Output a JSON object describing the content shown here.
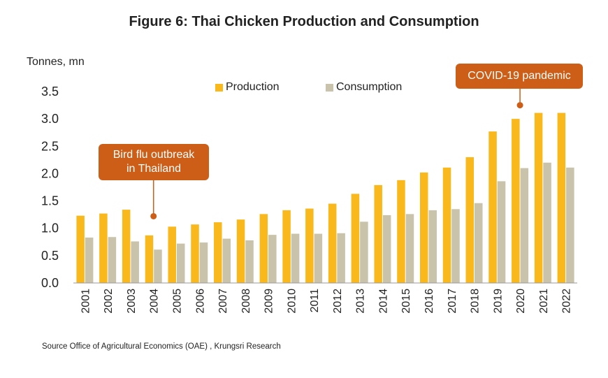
{
  "chart_data": {
    "type": "bar",
    "title": "Figure 6: Thai Chicken Production and Consumption",
    "ylabel": "Tonnes, mn",
    "ylim": [
      0,
      3.5
    ],
    "yticks": [
      "0.0",
      "0.5",
      "1.0",
      "1.5",
      "2.0",
      "2.5",
      "3.0",
      "3.5"
    ],
    "categories": [
      "2001",
      "2002",
      "2003",
      "2004",
      "2005",
      "2006",
      "2007",
      "2008",
      "2009",
      "2010",
      "2011",
      "2012",
      "2013",
      "2014",
      "2015",
      "2016",
      "2017",
      "2018",
      "2019",
      "2020",
      "2021",
      "2022"
    ],
    "series": [
      {
        "name": "Production",
        "color": "#f9b81b",
        "values": [
          1.23,
          1.27,
          1.34,
          0.87,
          1.03,
          1.07,
          1.11,
          1.16,
          1.26,
          1.33,
          1.36,
          1.45,
          1.63,
          1.79,
          1.88,
          2.02,
          2.11,
          2.3,
          2.77,
          3.0,
          3.11,
          3.11
        ]
      },
      {
        "name": "Consumption",
        "color": "#c9c3ac",
        "values": [
          0.83,
          0.84,
          0.76,
          0.61,
          0.72,
          0.74,
          0.81,
          0.78,
          0.88,
          0.9,
          0.9,
          0.91,
          1.12,
          1.24,
          1.26,
          1.33,
          1.35,
          1.46,
          1.86,
          2.1,
          2.2,
          2.11
        ]
      }
    ],
    "annotations": [
      {
        "text_lines": [
          "Bird flu outbreak",
          "in Thailand"
        ],
        "category": "2004",
        "y": 1.22
      },
      {
        "text_lines": [
          "COVID-19 pandemic"
        ],
        "category": "2020",
        "y": 3.25
      }
    ],
    "legend_position": "top-center"
  },
  "source": "Source  Office of Agricultural Economics (OAE) , Krungsri Research",
  "colors": {
    "callout": "#cc5e17",
    "axis": "#999999"
  }
}
